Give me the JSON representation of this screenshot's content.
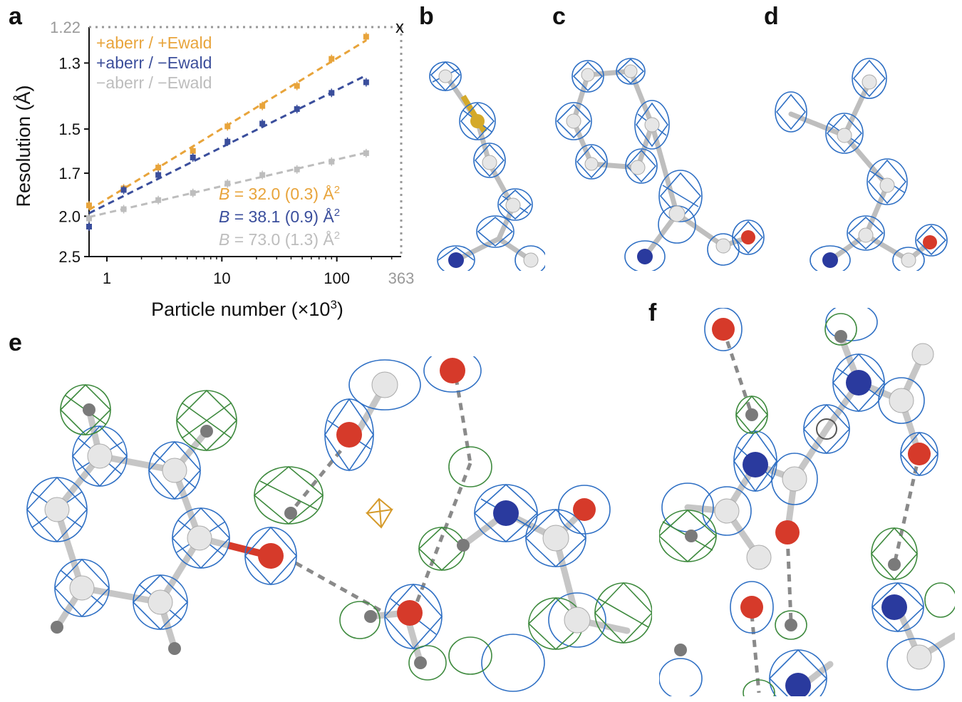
{
  "panels": {
    "a": "a",
    "b": "b",
    "c": "c",
    "d": "d",
    "e": "e",
    "f": "f"
  },
  "chart_data": {
    "type": "scatter",
    "xlabel_main": "Particle number (×10",
    "xlabel_sup": "3",
    "xlabel_end": ")",
    "ylabel": "Resolution (Å)",
    "x_scale": "log",
    "y_scale": "reciprocal-squared",
    "xlim": [
      0.7,
      363
    ],
    "ylim": [
      2.5,
      1.22
    ],
    "x_ticks": [
      1,
      10,
      100
    ],
    "x_tick_labels": [
      "1",
      "10",
      "100"
    ],
    "x_limit_label": "363",
    "y_ticks": [
      1.3,
      1.5,
      1.7,
      2.0,
      2.5
    ],
    "y_tick_labels": [
      "1.3",
      "1.5",
      "1.7",
      "2.0",
      "2.5"
    ],
    "y_limit_label": "1.22",
    "limit_marker": "x",
    "legend_position": "top-left",
    "series": [
      {
        "name": "+aberr / +Ewald",
        "color": "#E8A43B",
        "x": [
          0.7,
          1.4,
          2.8,
          5.6,
          11.2,
          22.5,
          45,
          90,
          180
        ],
        "y": [
          1.91,
          1.79,
          1.67,
          1.59,
          1.49,
          1.42,
          1.36,
          1.29,
          1.24
        ],
        "B_prefix": "B",
        "B_text": " = 32.0 (0.3) Å",
        "B_sup": "2"
      },
      {
        "name": "+aberr / −Ewald",
        "color": "#3A4E9C",
        "x": [
          0.7,
          1.4,
          2.8,
          5.6,
          11.2,
          22.5,
          45,
          90,
          180
        ],
        "y": [
          2.1,
          1.8,
          1.71,
          1.62,
          1.55,
          1.48,
          1.43,
          1.38,
          1.35
        ],
        "B_prefix": "B",
        "B_text": " = 38.1 (0.9) Å",
        "B_sup": "2"
      },
      {
        "name": "−aberr / −Ewald",
        "color": "#BDBDBD",
        "x": [
          0.7,
          1.4,
          2.8,
          5.6,
          11.2,
          22.5,
          45,
          90,
          180
        ],
        "y": [
          2.02,
          1.94,
          1.87,
          1.82,
          1.76,
          1.71,
          1.68,
          1.64,
          1.6
        ],
        "B_prefix": "B",
        "B_text": " = 73.0 (1.3) Å",
        "B_sup": "2"
      }
    ]
  },
  "colors": {
    "map_blue": "#2E6FC4",
    "map_green": "#3E8A3E",
    "map_orange": "#D59A2A",
    "atom_carbon": "#E6E6E6",
    "atom_oxygen": "#D63A2A",
    "atom_nitrogen": "#2A3A9E",
    "atom_hydrogen": "#7A7A7A",
    "atom_sulfur": "#D4A92A"
  }
}
